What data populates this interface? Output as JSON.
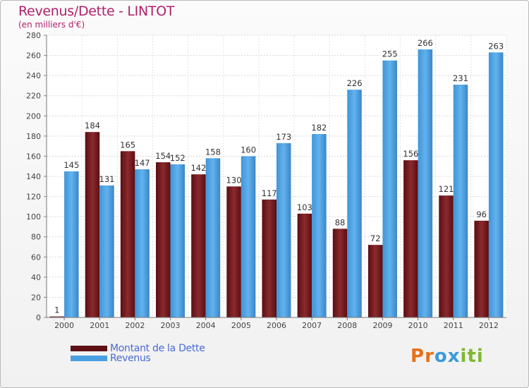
{
  "title": "Revenus/Dette - LINTOT",
  "subtitle": "(en milliers d'€)",
  "colors": {
    "dette": "#7a1c20",
    "revenus": "#4a9fe1",
    "title": "#b0216b",
    "legend_text": "#4a6bd3"
  },
  "legend": [
    {
      "label": "Montant de la Dette",
      "color": "#7a1c20"
    },
    {
      "label": "Revenus",
      "color": "#4a9fe1"
    }
  ],
  "logo": {
    "text": "Proxiti",
    "letter_colors": [
      "#e8701a",
      "#e8701a",
      "#3a9ad9",
      "#3a9ad9",
      "#7fb82e",
      "#7fb82e",
      "#7fb82e"
    ]
  },
  "chart_data": {
    "type": "bar",
    "title": "Revenus/Dette - LINTOT",
    "ylabel": "(en milliers d'€)",
    "xlabel": "",
    "ylim": [
      0,
      280
    ],
    "ytick_step": 20,
    "grid": true,
    "categories": [
      "2000",
      "2001",
      "2002",
      "2003",
      "2004",
      "2005",
      "2006",
      "2007",
      "2008",
      "2009",
      "2010",
      "2011",
      "2012"
    ],
    "series": [
      {
        "name": "Montant de la Dette",
        "values": [
          1,
          184,
          165,
          154,
          142,
          130,
          117,
          103,
          88,
          72,
          156,
          121,
          96
        ]
      },
      {
        "name": "Revenus",
        "values": [
          145,
          131,
          147,
          152,
          158,
          160,
          173,
          182,
          226,
          255,
          266,
          231,
          263
        ]
      }
    ]
  }
}
